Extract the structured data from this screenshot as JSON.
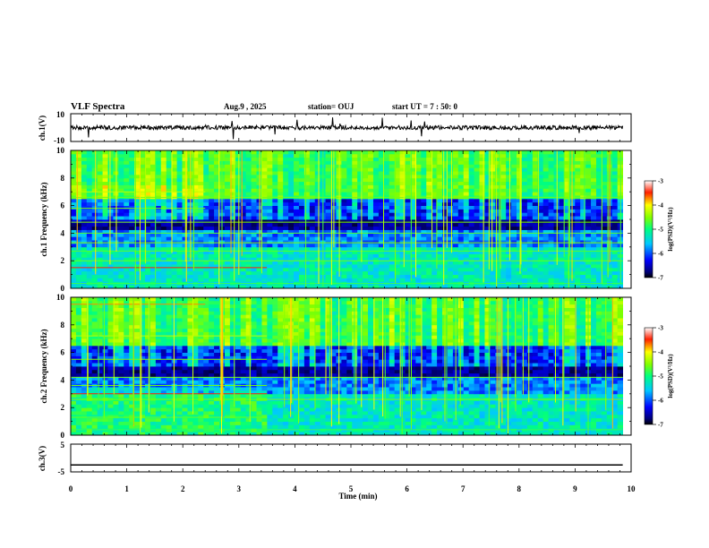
{
  "header": {
    "title": "VLF Spectra",
    "date": "Aug.9 , 2025",
    "station": "station= OUJ",
    "start_time": "start UT =  7 : 50: 0"
  },
  "chart_data": [
    {
      "type": "line",
      "name": "ch1-waveform",
      "ylabel": "ch.1(V)",
      "ylim": [
        -10,
        10
      ],
      "ytick_labels": [
        "10",
        "-10"
      ],
      "xlim": [
        0,
        10
      ],
      "baseline_v": 0,
      "description": "dense noise waveform with spikes"
    },
    {
      "type": "heatmap",
      "name": "ch1-spectrogram",
      "ylabel": "ch.1 Frequency (kHz)",
      "ylim": [
        0,
        10
      ],
      "yticks": [
        0,
        2,
        4,
        6,
        8,
        10
      ],
      "ytick_labels": [
        "0",
        "2",
        "4",
        "6",
        "8",
        "10"
      ],
      "xlim": [
        0,
        10
      ],
      "data_end_min": 9.85,
      "colorbar": {
        "label": "log(PSD)(V²/Hz)",
        "range": [
          -7,
          -3
        ],
        "tick_labels": [
          "-3",
          "-4",
          "-5",
          "-6",
          "-7"
        ]
      }
    },
    {
      "type": "heatmap",
      "name": "ch2-spectrogram",
      "ylabel": "ch.2 Frequency (kHz)",
      "ylim": [
        0,
        10
      ],
      "yticks": [
        0,
        2,
        4,
        6,
        8,
        10
      ],
      "ytick_labels": [
        "0",
        "2",
        "4",
        "6",
        "8",
        "10"
      ],
      "xlim": [
        0,
        10
      ],
      "data_end_min": 9.85,
      "colorbar": {
        "label": "log(PSD)(V²/Hz)",
        "range": [
          -7,
          -3
        ],
        "tick_labels": [
          "-3",
          "-4",
          "-5",
          "-6",
          "-7"
        ]
      }
    },
    {
      "type": "line",
      "name": "ch3-waveform",
      "ylabel": "ch.3(V)",
      "ylim": [
        -5,
        5
      ],
      "ytick_labels": [
        "5",
        "-5"
      ],
      "xlim": [
        0,
        10
      ],
      "constant_v": -2.5,
      "xlabel": "Time (min)",
      "xticks": [
        0,
        1,
        2,
        3,
        4,
        5,
        6,
        7,
        8,
        9,
        10
      ],
      "xtick_labels": [
        "0",
        "1",
        "2",
        "3",
        "4",
        "5",
        "6",
        "7",
        "8",
        "9",
        "10"
      ]
    }
  ]
}
